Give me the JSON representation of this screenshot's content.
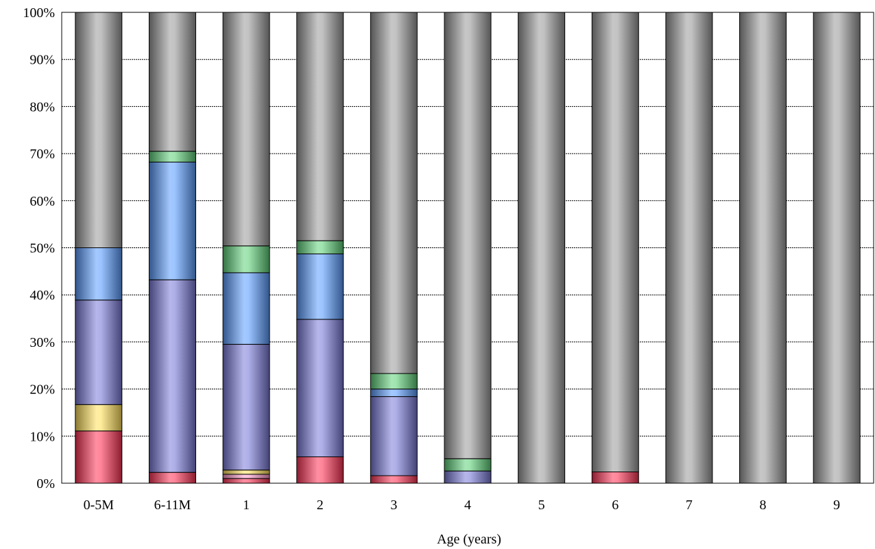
{
  "chart_data": {
    "type": "bar",
    "stacked": true,
    "percent": true,
    "xlabel": "Age (years)",
    "ylabel": "",
    "ylim": [
      0,
      100
    ],
    "yticks": [
      "0%",
      "10%",
      "20%",
      "30%",
      "40%",
      "50%",
      "60%",
      "70%",
      "80%",
      "90%",
      "100%"
    ],
    "grid": true,
    "categories": [
      "0-5M",
      "6-11M",
      "1",
      "2",
      "3",
      "4",
      "5",
      "6",
      "7",
      "8",
      "9"
    ],
    "series": [
      {
        "color": "#ff3355",
        "values": [
          11.1,
          2.3,
          1.0,
          5.6,
          1.6,
          0,
          0,
          2.4,
          0,
          0,
          0
        ]
      },
      {
        "color": "#ff99cc",
        "values": [
          0,
          0,
          0.9,
          0,
          0,
          0,
          0,
          0,
          0,
          0,
          0
        ]
      },
      {
        "color": "#ffe05a",
        "values": [
          5.6,
          0,
          0.9,
          0,
          0,
          0,
          0,
          0,
          0,
          0,
          0
        ]
      },
      {
        "color": "#7a7ad9",
        "values": [
          22.2,
          40.9,
          26.7,
          29.2,
          16.8,
          2.6,
          0,
          0,
          0,
          0,
          0
        ]
      },
      {
        "color": "#5a9cff",
        "values": [
          11.1,
          25.0,
          15.2,
          13.9,
          1.6,
          0,
          0,
          0,
          0,
          0,
          0
        ]
      },
      {
        "color": "#5fd17a",
        "values": [
          0,
          2.3,
          5.7,
          2.8,
          3.3,
          2.6,
          0,
          0,
          0,
          0,
          0
        ]
      },
      {
        "color": "#9a9a9a",
        "values": [
          50.0,
          29.5,
          49.6,
          48.5,
          76.7,
          94.8,
          100,
          97.6,
          100,
          100,
          100
        ]
      }
    ]
  }
}
